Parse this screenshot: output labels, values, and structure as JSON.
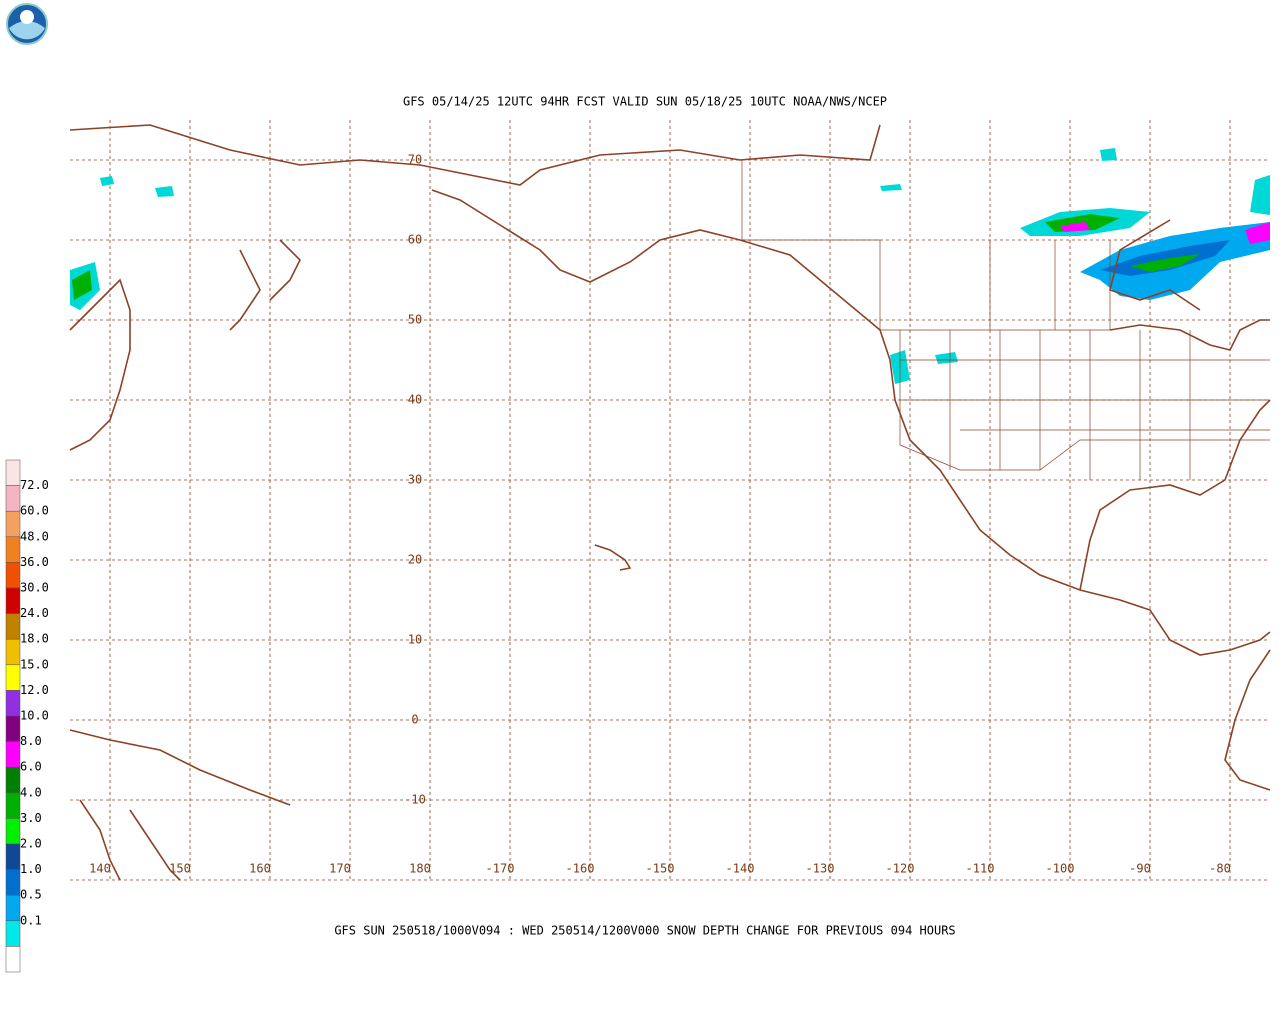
{
  "header": {
    "title": "GFS 05/14/25 12UTC 94HR FCST VALID SUN 05/18/25 10UTC NOAA/NWS/NCEP"
  },
  "map": {
    "lat_labels": [
      "70",
      "60",
      "50",
      "40",
      "30",
      "20",
      "10",
      "0",
      "-10"
    ],
    "lon_labels": [
      "140",
      "150",
      "160",
      "170",
      "180",
      "-170",
      "-160",
      "-150",
      "-140",
      "-130",
      "-120",
      "-110",
      "-100",
      "-90",
      "-80"
    ]
  },
  "legend": {
    "labels": [
      "72.0",
      "60.0",
      "48.0",
      "36.0",
      "30.0",
      "24.0",
      "18.0",
      "15.0",
      "12.0",
      "10.0",
      "8.0",
      "6.0",
      "4.0",
      "3.0",
      "2.0",
      "1.0",
      "0.5",
      "0.1"
    ],
    "colors": [
      "#fbe4e4",
      "#f4b4c4",
      "#f4a060",
      "#f08020",
      "#f05000",
      "#d00000",
      "#c08000",
      "#f0c000",
      "#ffff00",
      "#9030e0",
      "#800080",
      "#ff00ff",
      "#008000",
      "#00b000",
      "#00f000",
      "#104898",
      "#0070d0",
      "#00a8f0",
      "#00e8e8",
      "#ffffff"
    ]
  },
  "footer": {
    "caption": "GFS SUN 250518/1000V094 : WED 250514/1200V000 SNOW DEPTH CHANGE FOR PREVIOUS 094 HOURS"
  }
}
